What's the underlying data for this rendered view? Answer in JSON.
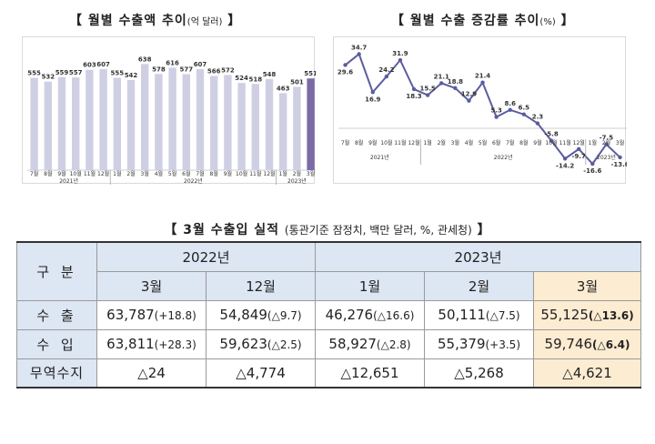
{
  "chart_data": [
    {
      "type": "bar",
      "title": "월별 수출액 추이",
      "title_unit": "(억 달러)",
      "categories": [
        "7월",
        "8월",
        "9월",
        "10월",
        "11월",
        "12월",
        "1월",
        "2월",
        "3월",
        "4월",
        "5월",
        "6월",
        "7월",
        "8월",
        "9월",
        "10월",
        "11월",
        "12월",
        "1월",
        "2월",
        "3월"
      ],
      "year_groups": [
        {
          "label": "2021년",
          "count": 6
        },
        {
          "label": "2022년",
          "count": 12
        },
        {
          "label": "2023년",
          "count": 3
        }
      ],
      "values": [
        555,
        532,
        559,
        557,
        603,
        607,
        555,
        542,
        638,
        578,
        616,
        577,
        607,
        566,
        572,
        524,
        518,
        548,
        463,
        501,
        551
      ],
      "ylim": [
        0,
        700
      ],
      "colors": {
        "bar": "#cfcfe4",
        "highlight": "#7a6aa6"
      }
    },
    {
      "type": "line",
      "title": "월별 수출 증감률 추이",
      "title_unit": "(%)",
      "categories": [
        "7월",
        "8월",
        "9월",
        "10월",
        "11월",
        "12월",
        "1월",
        "2월",
        "3월",
        "4월",
        "5월",
        "6월",
        "7월",
        "8월",
        "9월",
        "10월",
        "11월",
        "12월",
        "1월",
        "2월",
        "3월"
      ],
      "year_groups": [
        {
          "label": "2021년",
          "count": 6
        },
        {
          "label": "2022년",
          "count": 12
        },
        {
          "label": "2023년",
          "count": 3
        }
      ],
      "values": [
        29.6,
        34.7,
        16.9,
        24.2,
        31.9,
        18.3,
        15.5,
        21.1,
        18.8,
        12.9,
        21.4,
        5.3,
        8.6,
        6.5,
        2.3,
        -5.8,
        -14.2,
        -9.7,
        -16.6,
        -7.5,
        -13.6
      ],
      "ylim": [
        -20,
        40
      ],
      "colors": {
        "line": "#5a5d9e"
      }
    }
  ],
  "table": {
    "title": "3월 수출입 실적",
    "title_unit": "(통관기준 잠정치, 백만 달러, %, 관세청)",
    "corner": "구 분",
    "years": {
      "y2022": "2022년",
      "y2023": "2023년"
    },
    "months": {
      "m1": "3월",
      "m2": "12월",
      "m3": "1월",
      "m4": "2월",
      "m5": "3월"
    },
    "rows": [
      {
        "label": "수 출",
        "cells": [
          {
            "value": "63,787",
            "change": "(+18.8)"
          },
          {
            "value": "54,849",
            "change": "(△9.7)"
          },
          {
            "value": "46,276",
            "change": "(△16.6)"
          },
          {
            "value": "50,111",
            "change": "(△7.5)"
          },
          {
            "value": "55,125",
            "change": "(△13.6)"
          }
        ]
      },
      {
        "label": "수 입",
        "cells": [
          {
            "value": "63,811",
            "change": "(+28.3)"
          },
          {
            "value": "59,623",
            "change": "(△2.5)"
          },
          {
            "value": "58,927",
            "change": "(△2.8)"
          },
          {
            "value": "55,379",
            "change": "(+3.5)"
          },
          {
            "value": "59,746",
            "change": "(△6.4)"
          }
        ]
      },
      {
        "label": "무역수지",
        "cells": [
          {
            "value": "△24",
            "change": ""
          },
          {
            "value": "△4,774",
            "change": ""
          },
          {
            "value": "△12,651",
            "change": ""
          },
          {
            "value": "△5,268",
            "change": ""
          },
          {
            "value": "△4,621",
            "change": ""
          }
        ]
      }
    ]
  }
}
